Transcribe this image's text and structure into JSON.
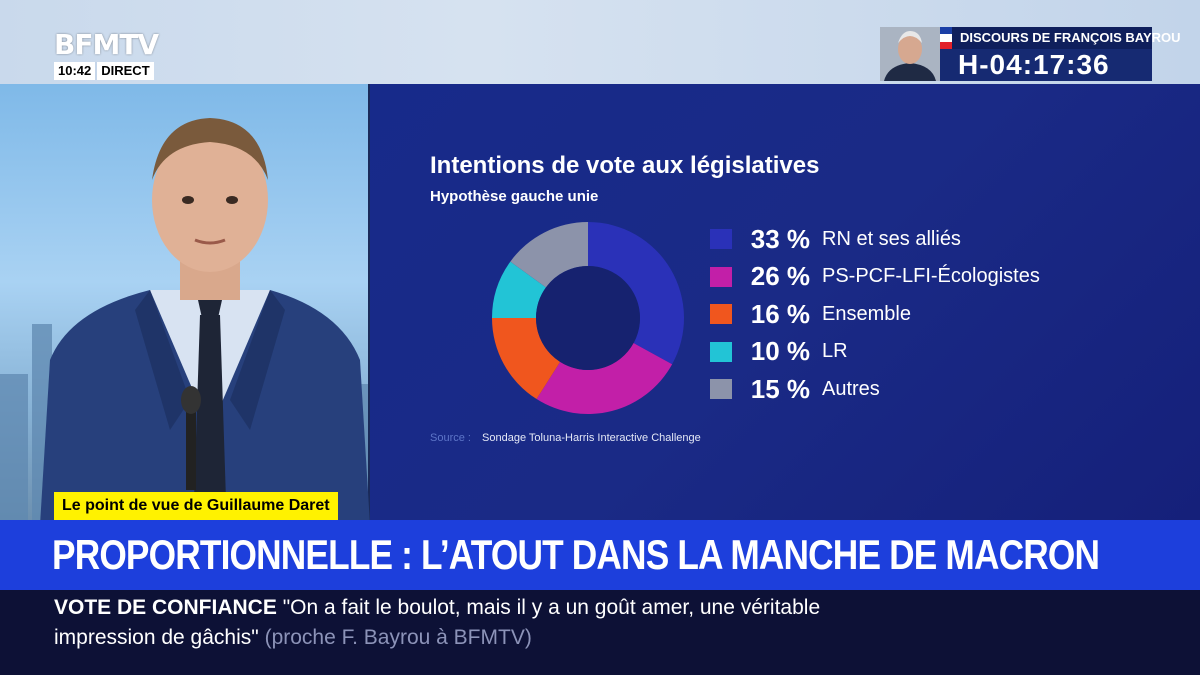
{
  "channel": {
    "logo": "BFMTV",
    "time": "10:42",
    "live": "DIRECT"
  },
  "countdown": {
    "title": "DISCOURS DE FRANÇOIS BAYROU",
    "timer": "H-04:17:36",
    "flag_colors": [
      "#1b3fa6",
      "#ffffff",
      "#e1212a"
    ]
  },
  "graphic": {
    "title": "Intentions de vote aux législatives",
    "subtitle": "Hypothèse gauche unie",
    "source_label": "Source :",
    "source_text": "Sondage Toluna-Harris Interactive Challenge"
  },
  "chart_data": {
    "type": "pie",
    "donut": true,
    "title": "Intentions de vote aux législatives",
    "subtitle": "Hypothèse gauche unie",
    "series": [
      {
        "label": "RN et ses alliés",
        "value": 33,
        "display": "33 %",
        "color": "#2a31b8"
      },
      {
        "label": "PS-PCF-LFI-Écologistes",
        "value": 26,
        "display": "26 %",
        "color": "#c21fa8"
      },
      {
        "label": "Ensemble",
        "value": 16,
        "display": "16 %",
        "color": "#f0561e"
      },
      {
        "label": "LR",
        "value": 10,
        "display": "10 %",
        "color": "#22c4d6"
      },
      {
        "label": "Autres",
        "value": 15,
        "display": "15 %",
        "color": "#8c93aa"
      }
    ],
    "legend_position": "right"
  },
  "lower_third": {
    "kicker": "Le point de vue de Guillaume Daret",
    "headline": "PROPORTIONNELLE : L’ATOUT DANS LA MANCHE DE MACRON",
    "ticker_label": "VOTE DE CONFIANCE",
    "ticker_quote_1": "\"On a fait le boulot, mais il y a un goût amer, une véritable",
    "ticker_quote_2": "impression de gâchis\"",
    "ticker_attribution": "(proche F. Bayrou à BFMTV)"
  },
  "colors": {
    "headline_blue": "#1d3fdc",
    "kicker_yellow": "#fff200",
    "ticker_bg": "#0d1136",
    "panel_blue": "#1a2a86"
  }
}
